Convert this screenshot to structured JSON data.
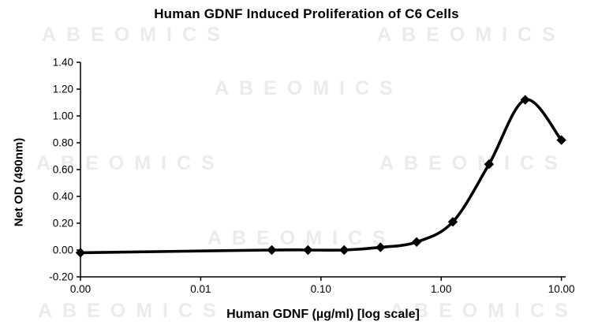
{
  "watermark": {
    "text": "ABEOMICS",
    "color": "#ebebeb"
  },
  "chart_data": {
    "type": "line",
    "title": "Human GDNF Induced Proliferation of C6 Cells",
    "xlabel": "Human GDNF (µg/ml) [log scale]",
    "ylabel": "Net OD (490nm)",
    "x_scale": "log",
    "x_tick_labels": [
      "0.00",
      "0.01",
      "0.10",
      "1.00",
      "10.00"
    ],
    "y_tick_labels": [
      "1.40",
      "1.20",
      "1.00",
      "0.80",
      "0.60",
      "0.40",
      "0.20",
      "0.00",
      "-0.20"
    ],
    "ylim": [
      -0.2,
      1.4
    ],
    "grid": false,
    "legend": false,
    "line_color": "#000000",
    "marker": "diamond",
    "series": [
      {
        "name": "Net OD (490nm)",
        "points": [
          {
            "x": 0,
            "y": -0.02
          },
          {
            "x": 0.039,
            "y": 0.0
          },
          {
            "x": 0.078,
            "y": 0.0
          },
          {
            "x": 0.156,
            "y": 0.0
          },
          {
            "x": 0.313,
            "y": 0.02
          },
          {
            "x": 0.625,
            "y": 0.06
          },
          {
            "x": 1.25,
            "y": 0.21
          },
          {
            "x": 2.5,
            "y": 0.64
          },
          {
            "x": 5,
            "y": 1.12
          },
          {
            "x": 10,
            "y": 0.82
          }
        ]
      }
    ]
  }
}
